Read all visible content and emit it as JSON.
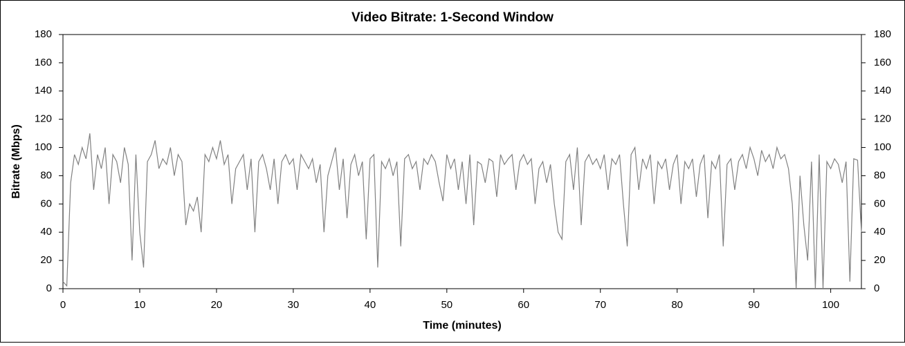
{
  "chart_data": {
    "type": "line",
    "title": "Video Bitrate: 1-Second Window",
    "x_label": "Time (minutes)",
    "y_label": "Bitrate (Mbps)",
    "x": [
      0,
      0.5,
      1,
      1.5,
      2,
      2.5,
      3,
      3.5,
      4,
      4.5,
      5,
      5.5,
      6,
      6.5,
      7,
      7.5,
      8,
      8.5,
      9,
      9.5,
      10,
      10.5,
      11,
      11.5,
      12,
      12.5,
      13,
      13.5,
      14,
      14.5,
      15,
      15.5,
      16,
      16.5,
      17,
      17.5,
      18,
      18.5,
      19,
      19.5,
      20,
      20.5,
      21,
      21.5,
      22,
      22.5,
      23,
      23.5,
      24,
      24.5,
      25,
      25.5,
      26,
      26.5,
      27,
      27.5,
      28,
      28.5,
      29,
      29.5,
      30,
      30.5,
      31,
      31.5,
      32,
      32.5,
      33,
      33.5,
      34,
      34.5,
      35,
      35.5,
      36,
      36.5,
      37,
      37.5,
      38,
      38.5,
      39,
      39.5,
      40,
      40.5,
      41,
      41.5,
      42,
      42.5,
      43,
      43.5,
      44,
      44.5,
      45,
      45.5,
      46,
      46.5,
      47,
      47.5,
      48,
      48.5,
      49,
      49.5,
      50,
      50.5,
      51,
      51.5,
      52,
      52.5,
      53,
      53.5,
      54,
      54.5,
      55,
      55.5,
      56,
      56.5,
      57,
      57.5,
      58,
      58.5,
      59,
      59.5,
      60,
      60.5,
      61,
      61.5,
      62,
      62.5,
      63,
      63.5,
      64,
      64.5,
      65,
      65.5,
      66,
      66.5,
      67,
      67.5,
      68,
      68.5,
      69,
      69.5,
      70,
      70.5,
      71,
      71.5,
      72,
      72.5,
      73,
      73.5,
      74,
      74.5,
      75,
      75.5,
      76,
      76.5,
      77,
      77.5,
      78,
      78.5,
      79,
      79.5,
      80,
      80.5,
      81,
      81.5,
      82,
      82.5,
      83,
      83.5,
      84,
      84.5,
      85,
      85.5,
      86,
      86.5,
      87,
      87.5,
      88,
      88.5,
      89,
      89.5,
      90,
      90.5,
      91,
      91.5,
      92,
      92.5,
      93,
      93.5,
      94,
      94.5,
      95,
      95.5,
      96,
      96.5,
      97,
      97.5,
      98,
      98.5,
      99,
      99.5,
      100,
      100.5,
      101,
      101.5,
      102,
      102.5,
      103,
      103.5,
      104
    ],
    "series": [
      {
        "name": "Bitrate",
        "color": "#808080",
        "values": [
          5,
          2,
          75,
          95,
          88,
          100,
          92,
          110,
          70,
          95,
          85,
          100,
          60,
          95,
          90,
          75,
          100,
          88,
          20,
          95,
          40,
          15,
          90,
          95,
          105,
          85,
          92,
          88,
          100,
          80,
          95,
          90,
          45,
          60,
          55,
          65,
          40,
          95,
          90,
          100,
          92,
          105,
          88,
          95,
          60,
          85,
          90,
          95,
          70,
          92,
          40,
          90,
          95,
          85,
          70,
          92,
          60,
          90,
          95,
          88,
          92,
          70,
          95,
          90,
          85,
          92,
          75,
          88,
          40,
          80,
          90,
          100,
          70,
          92,
          50,
          88,
          95,
          80,
          90,
          35,
          92,
          95,
          15,
          90,
          85,
          92,
          80,
          90,
          30,
          92,
          95,
          85,
          90,
          70,
          92,
          88,
          95,
          90,
          75,
          62,
          95,
          85,
          92,
          70,
          90,
          60,
          95,
          45,
          90,
          88,
          75,
          92,
          90,
          65,
          95,
          88,
          92,
          95,
          70,
          90,
          95,
          88,
          92,
          60,
          85,
          90,
          75,
          88,
          60,
          40,
          35,
          90,
          95,
          70,
          100,
          45,
          90,
          95,
          88,
          92,
          85,
          95,
          70,
          92,
          88,
          95,
          60,
          30,
          95,
          100,
          70,
          92,
          85,
          95,
          60,
          90,
          85,
          92,
          70,
          88,
          95,
          60,
          90,
          85,
          92,
          65,
          88,
          95,
          50,
          90,
          85,
          95,
          30,
          88,
          92,
          70,
          90,
          95,
          85,
          100,
          92,
          80,
          98,
          90,
          95,
          85,
          100,
          92,
          95,
          85,
          60,
          0,
          80,
          45,
          20,
          90,
          0,
          95,
          0,
          90,
          85,
          92,
          88,
          75,
          90,
          5,
          92,
          91,
          40
        ]
      }
    ],
    "xlim": [
      0,
      104
    ],
    "xticks": [
      0,
      10,
      20,
      30,
      40,
      50,
      60,
      70,
      80,
      90,
      100
    ],
    "ylim": [
      0,
      180
    ],
    "yticks": [
      0,
      20,
      40,
      60,
      80,
      100,
      120,
      140,
      160,
      180
    ],
    "y2lim": [
      0,
      180
    ],
    "y2ticks": [
      0,
      20,
      40,
      60,
      80,
      100,
      120,
      140,
      160,
      180
    ]
  }
}
